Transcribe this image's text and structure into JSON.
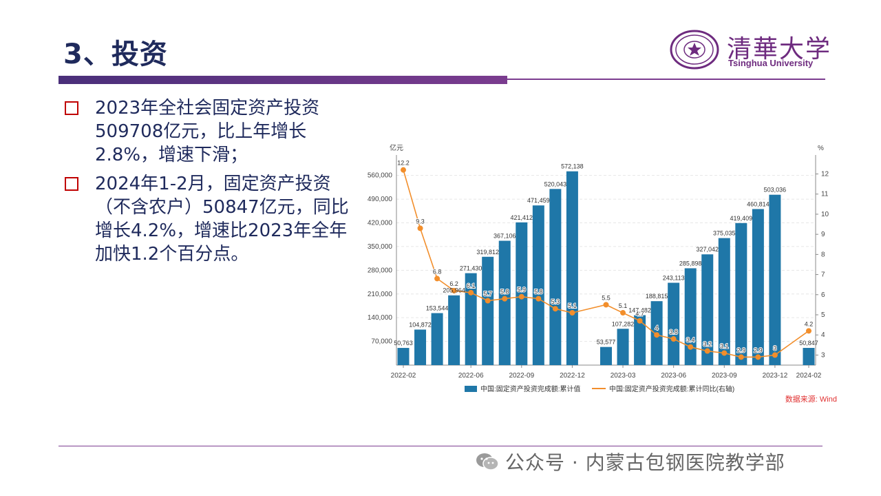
{
  "title": "3、投资",
  "logo": {
    "cn": "清華大学",
    "en": "Tsinghua University"
  },
  "bullets": [
    "2023年全社会固定资产投资509708亿元，比上年增长2.8%，增速下滑；",
    "2024年1-2月，固定资产投资（不含农户）50847亿元，同比增长4.2%，增速比2023年全年加快1.2个百分点。"
  ],
  "footer": {
    "text": "公众号 · 内蒙古包钢医院教学部",
    "icon": "wechat-icon"
  },
  "colors": {
    "bar": "#1f77a8",
    "line": "#f28e2b",
    "source": "#e03030",
    "title": "#1f2a5c"
  },
  "chart_data": {
    "type": "bar",
    "left_unit": "亿元",
    "right_unit": "%",
    "x_ticks": [
      "2022-02",
      "2022-06",
      "2022-09",
      "2022-12",
      "2023-03",
      "2023-06",
      "2023-09",
      "2023-12",
      "2024-02"
    ],
    "y_ticks": [
      "70,000",
      "140,000",
      "210,000",
      "280,000",
      "350,000",
      "420,000",
      "490,000",
      "560,000"
    ],
    "y2_ticks": [
      "3",
      "4",
      "5",
      "6",
      "7",
      "8",
      "9",
      "10",
      "11",
      "12"
    ],
    "ylim": [
      0,
      600000
    ],
    "y2lim": [
      2.5,
      12.6
    ],
    "x": [
      0,
      1,
      2,
      3,
      4,
      5,
      6,
      7,
      8,
      9,
      10,
      12,
      13,
      14,
      15,
      16,
      17,
      18,
      19,
      20,
      21,
      22,
      24
    ],
    "bar_labels": [
      "50,763",
      "104,872",
      "153,544",
      "205,964",
      "271,430",
      "319,812",
      "367,106",
      "421,412",
      "471,459",
      "520,043",
      "572,138",
      "53,577",
      "107,282",
      "147,482",
      "188,815",
      "243,113",
      "285,898",
      "327,042",
      "375,035",
      "419,409",
      "460,814",
      "503,036",
      "50,847"
    ],
    "line_labels": [
      "12.2",
      "9.3",
      "6.8",
      "6.2",
      "6.1",
      "5.7",
      "5.8",
      "5.9",
      "5.8",
      "5.3",
      "5.1",
      "5.5",
      "5.1",
      "4.7",
      "4",
      "3.8",
      "3.4",
      "3.2",
      "3.1",
      "2.9",
      "2.9",
      "3",
      "4.2"
    ],
    "series": [
      {
        "name": "中国:固定资产投资完成额:累计值",
        "values": [
          50763,
          104872,
          153544,
          205964,
          271430,
          319812,
          367106,
          421412,
          471459,
          520043,
          572138,
          53577,
          107282,
          147482,
          188815,
          243113,
          285898,
          327042,
          375035,
          419409,
          460814,
          503036,
          50847
        ]
      },
      {
        "name": "中国:固定资产投资完成额:累计同比(右轴)",
        "values": [
          12.2,
          9.3,
          6.8,
          6.2,
          6.1,
          5.7,
          5.8,
          5.9,
          5.8,
          5.3,
          5.1,
          5.5,
          5.1,
          4.7,
          4.0,
          3.8,
          3.4,
          3.2,
          3.1,
          2.9,
          2.9,
          3.0,
          4.2
        ]
      }
    ],
    "source": "数据来源: Wind"
  }
}
